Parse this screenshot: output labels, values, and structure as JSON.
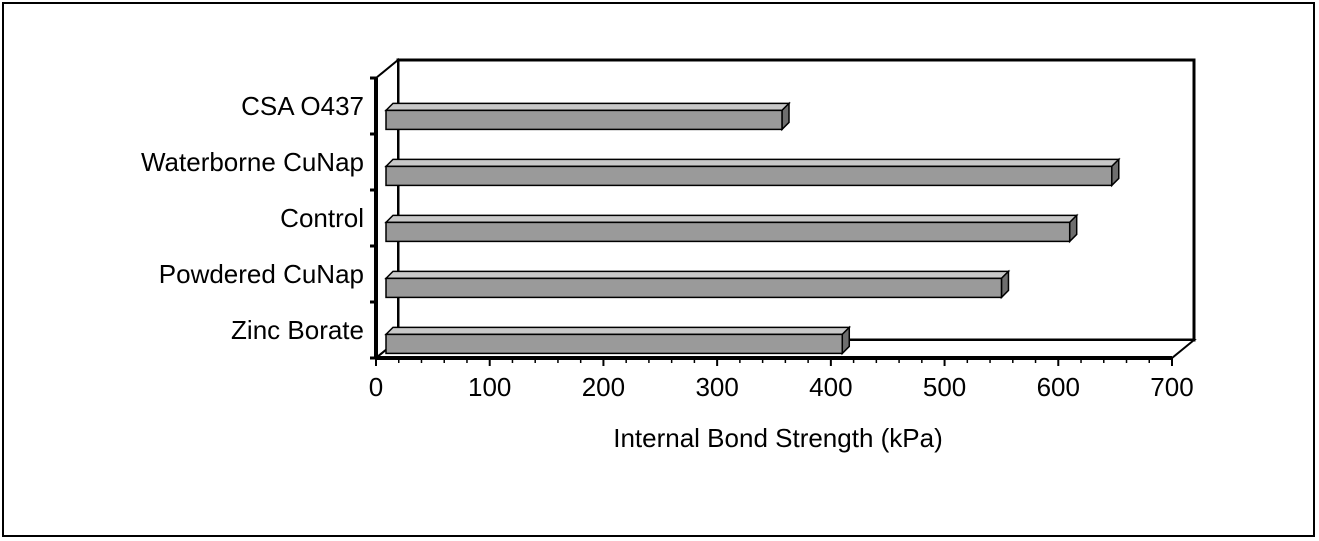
{
  "chart_data": {
    "type": "bar",
    "orientation": "horizontal",
    "style": "3d",
    "categories": [
      "CSA O437",
      "Waterborne CuNap",
      "Control",
      "Powdered CuNap",
      "Zinc Borate"
    ],
    "values": [
      350,
      640,
      603,
      543,
      403
    ],
    "xlabel": "Internal Bond Strength (kPa)",
    "ylabel": "",
    "title": "",
    "xlim": [
      0,
      700
    ],
    "xticks": [
      "0",
      "100",
      "200",
      "300",
      "400",
      "500",
      "600",
      "700"
    ],
    "grid": "vertical-dashed",
    "legend": "none",
    "colors": {
      "bar_front": "#9a9a9a",
      "bar_top": "#c8c8c8",
      "bar_side": "#6e6e6e",
      "frame": "#000000"
    }
  }
}
